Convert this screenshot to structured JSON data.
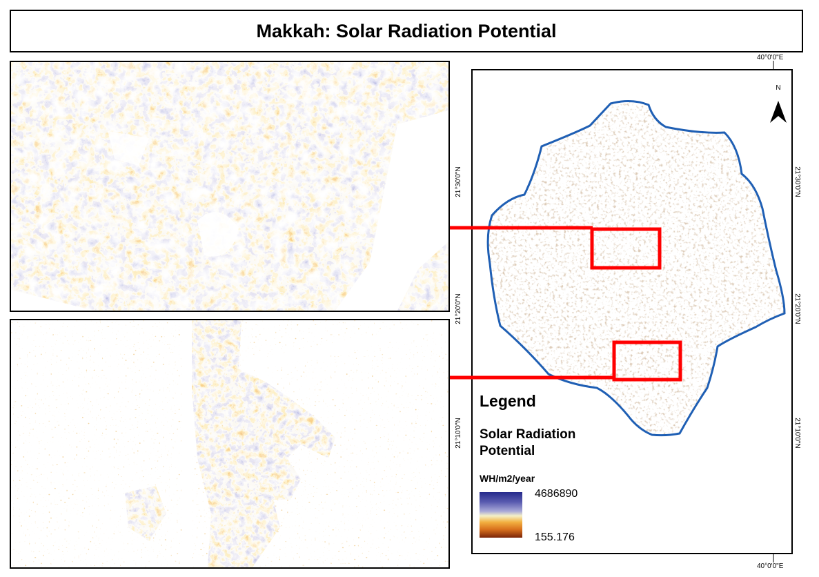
{
  "title": "Makkah: Solar Radiation Potential",
  "legend": {
    "title": "Legend",
    "subtitle_line1": "Solar Radiation",
    "subtitle_line2": "Potential",
    "units": "WH/m2/year",
    "max_value": "4686890",
    "min_value": "155.176",
    "ramp_colors": [
      "#262a8c",
      "#5a5cb0",
      "#a8a8d8",
      "#f4f0c8",
      "#f2b040",
      "#d8701c",
      "#7a2408"
    ]
  },
  "graticule": {
    "lon_top": "40°0'0\"E",
    "lon_bottom": "40°0'0\"E",
    "lat_labels": [
      "21°30'0\"N",
      "21°20'0\"N",
      "21°10'0\"N"
    ]
  },
  "north_arrow": "N",
  "colors": {
    "boundary": "#1f5fb4",
    "highlight": "#ff0000",
    "urban": "#c9a56a"
  }
}
